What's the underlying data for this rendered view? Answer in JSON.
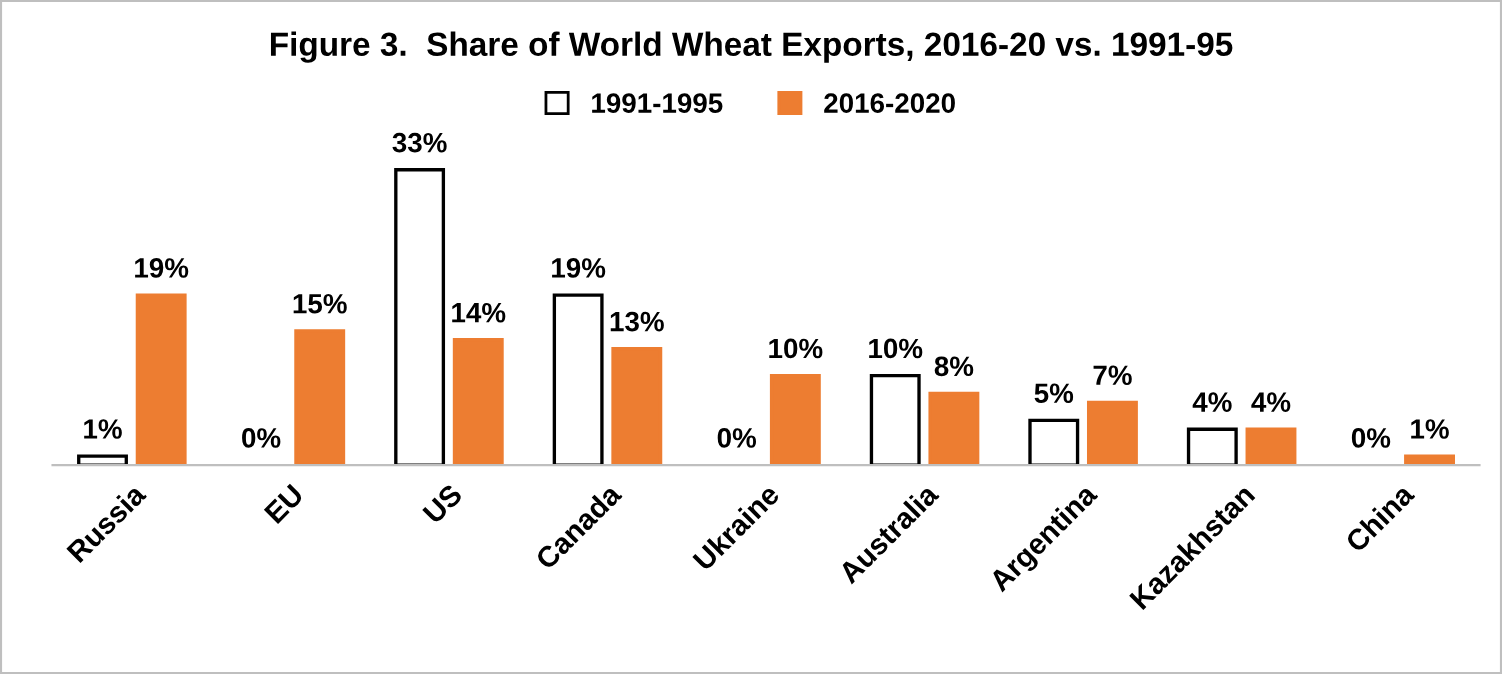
{
  "chart_data": {
    "type": "bar",
    "title": "Figure 3.  Share of World Wheat Exports, 2016-20 vs. 1991-95",
    "categories": [
      "Russia",
      "EU",
      "US",
      "Canada",
      "Ukraine",
      "Australia",
      "Argentina",
      "Kazakhstan",
      "China"
    ],
    "series": [
      {
        "name": "1991-1995",
        "color": "#ffffff",
        "values": [
          1,
          0,
          33,
          19,
          0,
          10,
          5,
          4,
          0
        ],
        "value_labels": [
          "1%",
          "0%",
          "33%",
          "19%",
          "0%",
          "10%",
          "5%",
          "4%",
          "0%"
        ]
      },
      {
        "name": "2016-2020",
        "color": "#ed7d31",
        "values": [
          19,
          15,
          14,
          13,
          10,
          8,
          7,
          4,
          1
        ],
        "value_labels": [
          "19%",
          "15%",
          "14%",
          "13%",
          "10%",
          "8%",
          "7%",
          "4%",
          "1%"
        ]
      }
    ],
    "legend": "top",
    "grid": false
  }
}
